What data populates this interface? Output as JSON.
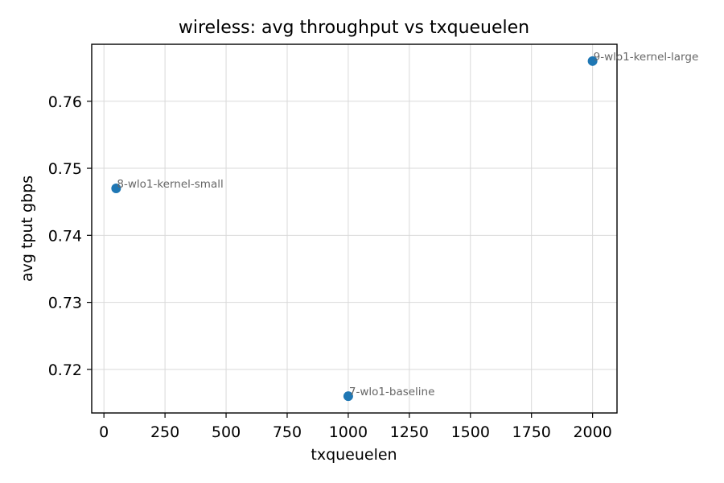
{
  "chart_data": {
    "type": "scatter",
    "title": "wireless: avg throughput vs txqueuelen",
    "xlabel": "txqueuelen",
    "ylabel": "avg tput gbps",
    "xlim": [
      -50,
      2100
    ],
    "ylim": [
      0.7135,
      0.7685
    ],
    "xticks": [
      0,
      250,
      500,
      750,
      1000,
      1250,
      1500,
      1750,
      2000
    ],
    "yticks": [
      0.72,
      0.73,
      0.74,
      0.75,
      0.76
    ],
    "ytick_labels": [
      "0.72",
      "0.73",
      "0.74",
      "0.75",
      "0.76"
    ],
    "grid": true,
    "point_color": "#1f77b4",
    "label_color": "#666666",
    "points": [
      {
        "label": "8-wlo1-kernel-small",
        "x": 50,
        "y": 0.747
      },
      {
        "label": "7-wlo1-baseline",
        "x": 1000,
        "y": 0.716
      },
      {
        "label": "9-wlo1-kernel-large",
        "x": 2000,
        "y": 0.766
      }
    ]
  }
}
